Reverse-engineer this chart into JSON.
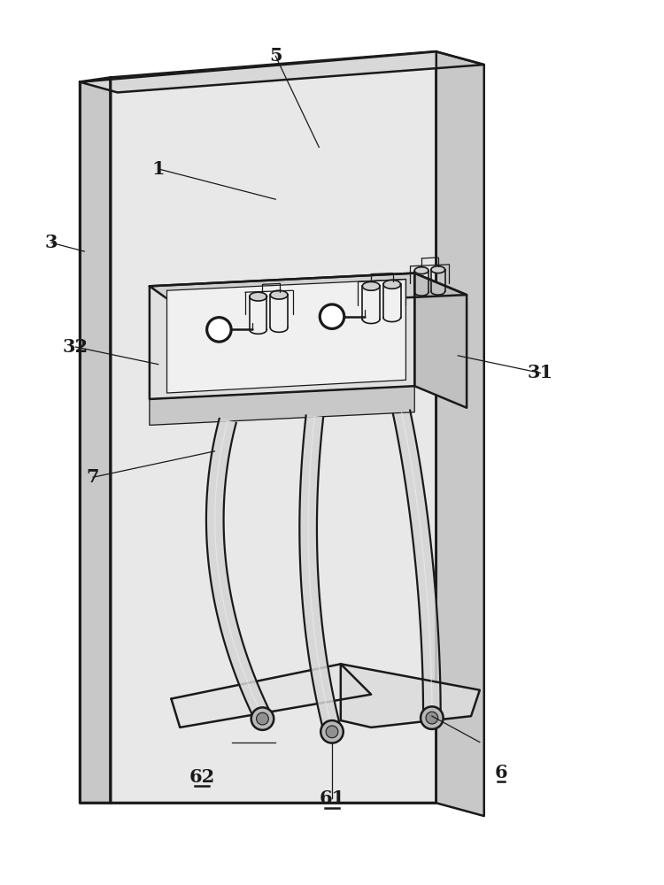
{
  "bg_color": "#ffffff",
  "line_color": "#1a1a1a",
  "lw_main": 1.8,
  "lw_thin": 0.9,
  "lw_fill": 0.7,
  "label_fontsize": 15,
  "figsize": [
    7.5,
    10.0
  ],
  "dpi": 100,
  "colors": {
    "panel_face": "#e8e8e8",
    "panel_side": "#c8c8c8",
    "panel_top": "#d8d8d8",
    "tray_face": "#e0e0e0",
    "tray_side": "#c0c0c0",
    "tray_top": "#d0d0d0",
    "base_fill": "#e4e4e4",
    "leg_fill": "#d8d8d8",
    "inner_fill": "#f0f0f0",
    "shading": "#b0b0b0"
  }
}
